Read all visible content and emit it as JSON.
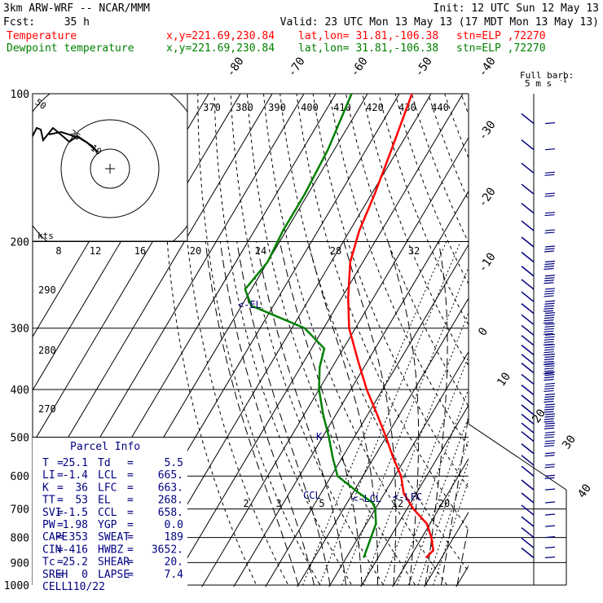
{
  "header": {
    "model": "3km ARW-WRF -- NCAR/MMM",
    "init": "Init: 12 UTC Sun 12 May 13",
    "fcst_label": "Fcst:",
    "fcst_value": "35 h",
    "valid": "Valid: 23 UTC Mon 13 May 13 (17 MDT Mon 13 May 13)"
  },
  "legend": [
    {
      "name": "Temperature",
      "color": "#ff0000",
      "xy": "x,y=221.69,230.84",
      "latlon": "lat,lon= 31.81,-106.38",
      "stn": "stn=ELP ,72270"
    },
    {
      "name": "Dewpoint temperature",
      "color": "#008000",
      "xy": "x,y=221.69,230.84",
      "latlon": "lat,lon= 31.81,-106.38",
      "stn": "stn=ELP ,72270"
    }
  ],
  "barb_scale": {
    "line1": "Full barb:",
    "line2": "5 m s",
    "sup": "-1"
  },
  "parcel_info": {
    "title": "Parcel Info",
    "rows": [
      [
        "T",
        "25.1",
        "Td",
        "5.5"
      ],
      [
        "LI",
        "-1.4",
        "LCL",
        "665."
      ],
      [
        "K",
        "36",
        "LFC",
        "663."
      ],
      [
        "TT",
        "53",
        "EL",
        "268."
      ],
      [
        "SVI",
        "-1.5",
        "CCL",
        "658."
      ],
      [
        "PW",
        "1.98",
        "YGP",
        "0.0"
      ],
      [
        "CAPE",
        "353",
        "SWEAT",
        "189"
      ],
      [
        "CIN",
        "-416",
        "HWBZ",
        "3652."
      ],
      [
        "Tc",
        "25.2",
        "SHEAR",
        "20."
      ],
      [
        "SREH",
        "0",
        "LAPSE",
        "7.4"
      ],
      [
        "CELL",
        "110/22",
        "",
        ""
      ]
    ]
  },
  "hodograph": {
    "axis_label": "kts",
    "ring_labels": [
      "50",
      "25",
      "10"
    ]
  },
  "level_labels": {
    "el": "<-EL",
    "ccl": "CCL",
    "lcl": "<-LCL",
    "lfc": "<-LFC",
    "k": "K"
  },
  "chart_data": {
    "type": "line",
    "pressure_levels": [
      100,
      200,
      300,
      400,
      500,
      600,
      700,
      800,
      900,
      1000
    ],
    "isotherm_labels": [
      -80,
      -70,
      -60,
      -50,
      -40,
      -30,
      -20,
      -10,
      0,
      10,
      20,
      30,
      40
    ],
    "theta_labels": [
      370,
      380,
      390,
      400,
      410,
      420,
      430,
      440
    ],
    "mixing_ratio_top_labels": [
      8,
      12,
      16,
      20,
      24,
      28,
      32
    ],
    "mixing_ratio_bottom_labels": [
      2,
      3,
      5,
      12,
      20
    ],
    "theta_left_labels": [
      290,
      280,
      270
    ],
    "series": [
      {
        "name": "Temperature",
        "color": "#ff0000",
        "points": [
          [
            100,
            -66
          ],
          [
            130,
            -62
          ],
          [
            160,
            -59
          ],
          [
            190,
            -57
          ],
          [
            220,
            -54
          ],
          [
            260,
            -48
          ],
          [
            300,
            -42
          ],
          [
            350,
            -33
          ],
          [
            400,
            -25
          ],
          [
            450,
            -17
          ],
          [
            500,
            -10
          ],
          [
            550,
            -4
          ],
          [
            600,
            2
          ],
          [
            650,
            6
          ],
          [
            700,
            12
          ],
          [
            750,
            19
          ],
          [
            800,
            23
          ],
          [
            850,
            26
          ],
          [
            880,
            25.1
          ]
        ]
      },
      {
        "name": "Dewpoint temperature",
        "color": "#008000",
        "points": [
          [
            100,
            -85
          ],
          [
            130,
            -82
          ],
          [
            160,
            -81
          ],
          [
            190,
            -81
          ],
          [
            220,
            -80
          ],
          [
            250,
            -82
          ],
          [
            270,
            -77
          ],
          [
            300,
            -56
          ],
          [
            330,
            -46
          ],
          [
            360,
            -44
          ],
          [
            400,
            -40
          ],
          [
            450,
            -34
          ],
          [
            500,
            -28
          ],
          [
            550,
            -23
          ],
          [
            600,
            -18
          ],
          [
            650,
            -8
          ],
          [
            680,
            -2
          ],
          [
            700,
            0
          ],
          [
            750,
            3
          ],
          [
            800,
            4
          ],
          [
            880,
            5.5
          ]
        ]
      }
    ],
    "wind_barbs": [
      {
        "p": 115,
        "spd": 5
      },
      {
        "p": 130,
        "spd": 5
      },
      {
        "p": 145,
        "spd": 8
      },
      {
        "p": 160,
        "spd": 10
      },
      {
        "p": 175,
        "spd": 10
      },
      {
        "p": 190,
        "spd": 12
      },
      {
        "p": 205,
        "spd": 15
      },
      {
        "p": 220,
        "spd": 18
      },
      {
        "p": 235,
        "spd": 20
      },
      {
        "p": 250,
        "spd": 22
      },
      {
        "p": 265,
        "spd": 24
      },
      {
        "p": 280,
        "spd": 25
      },
      {
        "p": 295,
        "spd": 26
      },
      {
        "p": 310,
        "spd": 26
      },
      {
        "p": 325,
        "spd": 25
      },
      {
        "p": 340,
        "spd": 24
      },
      {
        "p": 355,
        "spd": 24
      },
      {
        "p": 370,
        "spd": 22
      },
      {
        "p": 390,
        "spd": 20
      },
      {
        "p": 410,
        "spd": 20
      },
      {
        "p": 430,
        "spd": 18
      },
      {
        "p": 450,
        "spd": 18
      },
      {
        "p": 470,
        "spd": 16
      },
      {
        "p": 490,
        "spd": 15
      },
      {
        "p": 510,
        "spd": 15
      },
      {
        "p": 540,
        "spd": 12
      },
      {
        "p": 570,
        "spd": 10
      },
      {
        "p": 600,
        "spd": 8
      },
      {
        "p": 640,
        "spd": 6
      },
      {
        "p": 680,
        "spd": 5
      },
      {
        "p": 720,
        "spd": 4
      },
      {
        "p": 760,
        "spd": 5
      },
      {
        "p": 800,
        "spd": 5
      },
      {
        "p": 840,
        "spd": 6
      },
      {
        "p": 880,
        "spd": 6
      }
    ],
    "hodograph_trace": [
      [
        -95,
        40
      ],
      [
        -90,
        50
      ],
      [
        -85,
        48
      ],
      [
        -82,
        35
      ],
      [
        -70,
        50
      ],
      [
        -50,
        33
      ],
      [
        -40,
        40
      ],
      [
        -28,
        32
      ],
      [
        -15,
        20
      ],
      [
        -22,
        28
      ],
      [
        -38,
        38
      ],
      [
        -60,
        45
      ],
      [
        -75,
        42
      ]
    ]
  }
}
